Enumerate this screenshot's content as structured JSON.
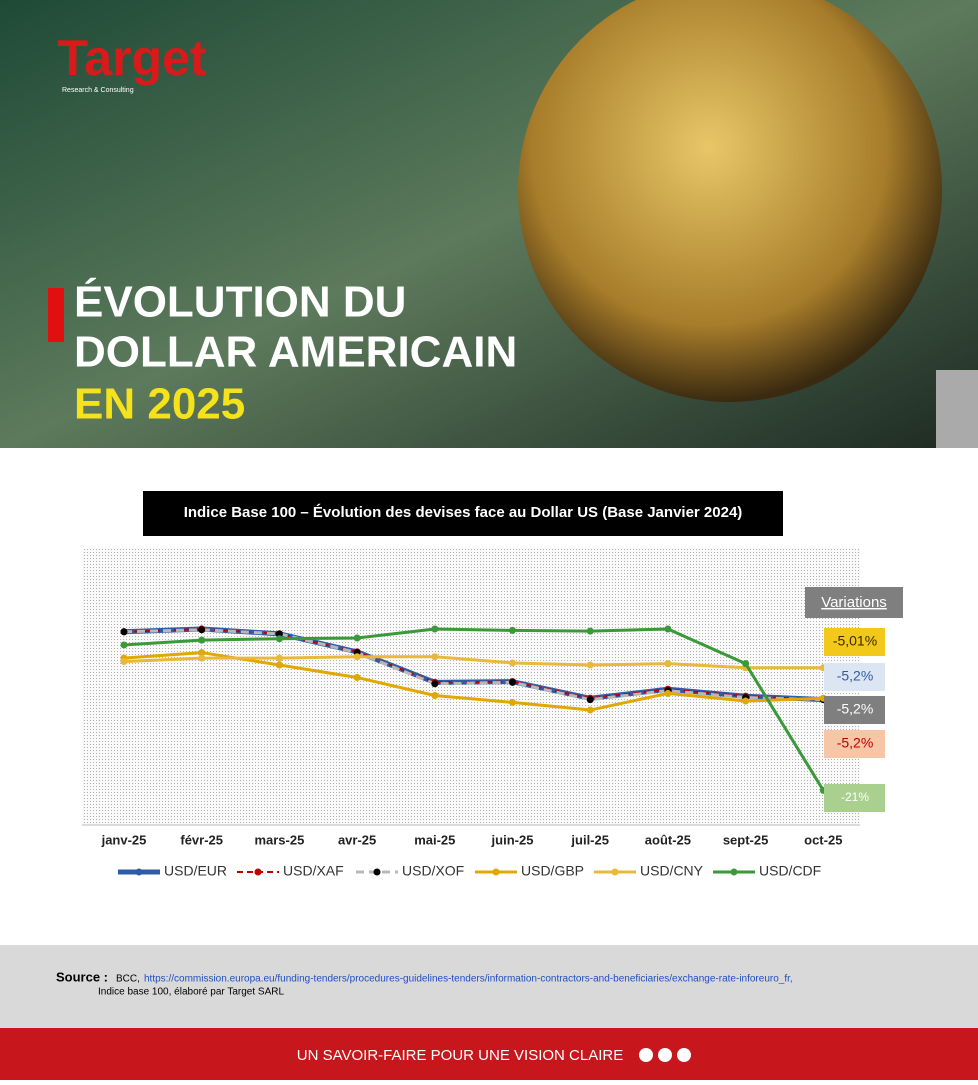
{
  "header": {
    "logo": "Target",
    "logo_tagline": "Research & Consulting",
    "title_lines": [
      "ÉVOLUTION DU",
      "DOLLAR AMERICAIN",
      "EN 2025"
    ]
  },
  "chart_data": {
    "type": "line",
    "title": "Indice Base 100 – Évolution des devises face au Dollar US (Base Janvier 2024)",
    "categories": [
      "janv-25",
      "févr-25",
      "mars-25",
      "avr-25",
      "mai-25",
      "juin-25",
      "juil-25",
      "août-25",
      "sept-25",
      "oct-25"
    ],
    "ylim": [
      74,
      114
    ],
    "series": [
      {
        "name": "USD/EUR",
        "color": "#2e5ca8",
        "values": [
          101.9,
          102.3,
          101.6,
          99.0,
          94.6,
          94.7,
          92.3,
          93.6,
          92.6,
          92.1
        ]
      },
      {
        "name": "USD/XAF",
        "color": "#c00000",
        "values": [
          101.9,
          102.3,
          101.6,
          99.0,
          94.6,
          94.7,
          92.3,
          93.6,
          92.6,
          92.1
        ]
      },
      {
        "name": "USD/XOF",
        "color": "#b8b8b8",
        "values": [
          101.9,
          102.2,
          101.6,
          98.9,
          94.4,
          94.6,
          92.1,
          93.4,
          92.4,
          92.1
        ]
      },
      {
        "name": "USD/GBP",
        "color": "#e0a800",
        "values": [
          98.1,
          98.9,
          97.1,
          95.3,
          92.7,
          91.7,
          90.6,
          93.0,
          91.9,
          92.3
        ]
      },
      {
        "name": "USD/CNY",
        "color": "#e8b93a",
        "values": [
          97.6,
          98.1,
          98.1,
          98.3,
          98.3,
          97.4,
          97.1,
          97.3,
          96.7,
          96.7
        ]
      },
      {
        "name": "USD/CDF",
        "color": "#3a9a3a",
        "values": [
          100,
          100.7,
          100.9,
          101,
          102.3,
          102.1,
          102,
          102.3,
          97.3,
          79
        ]
      }
    ],
    "annotations": {
      "title": "Variations",
      "items": [
        "-5,01%",
        "-5,2%",
        "-5,2%",
        "-5,2%",
        "-21%"
      ]
    }
  },
  "source": {
    "label": "Source :",
    "text": "BCC,",
    "url": "https://commission.europa.eu/funding-tenders/procedures-guidelines-tenders/information-contractors-and-beneficiaries/exchange-rate-inforeuro_fr,",
    "note": "Indice base 100, élaboré par Target SARL"
  },
  "footer": {
    "slogan": "UN SAVOIR-FAIRE POUR UNE VISION CLAIRE"
  }
}
